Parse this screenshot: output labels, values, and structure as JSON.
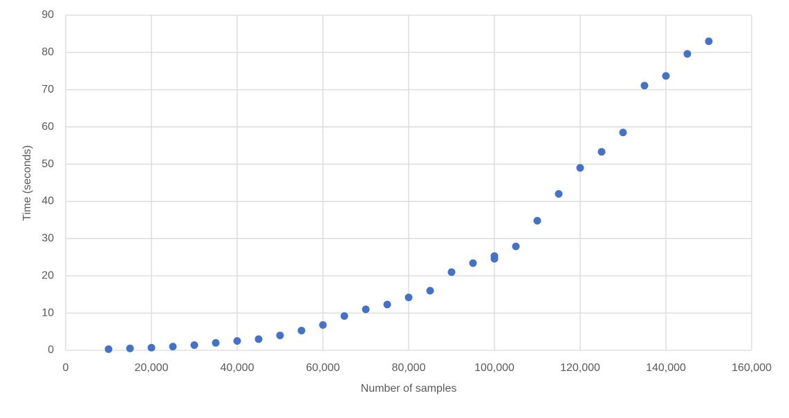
{
  "chart_data": {
    "type": "scatter",
    "x_label": "Number of samples",
    "y_label": "Time (seconds)",
    "color": "#4472c4",
    "grid": true,
    "xlim": [
      0,
      160000
    ],
    "xticks": [
      0,
      {
        "value": 20000,
        "label": "20,000"
      },
      {
        "value": 40000,
        "label": "40,000"
      },
      {
        "value": 60000,
        "label": "60,000"
      },
      {
        "value": 80000,
        "label": "80,000"
      },
      {
        "value": 100000,
        "label": "100,000"
      },
      {
        "value": 120000,
        "label": "120,000"
      },
      {
        "value": 140000,
        "label": "140,000"
      },
      {
        "value": 160000,
        "label": "160,000"
      }
    ],
    "ylim": [
      0,
      90
    ],
    "yticks": [
      0,
      10,
      20,
      30,
      40,
      50,
      60,
      70,
      80,
      90
    ],
    "x": [
      10000,
      15000,
      20000,
      25000,
      30000,
      35000,
      40000,
      45000,
      50000,
      55000,
      60000,
      65000,
      70000,
      75000,
      80000,
      85000,
      90000,
      95000,
      100000,
      100000,
      105000,
      110000,
      115000,
      120000,
      125000,
      130000,
      135000,
      140000,
      145000,
      150000
    ],
    "values": [
      0.3,
      0.5,
      0.7,
      1.0,
      1.4,
      2.0,
      2.5,
      3.0,
      4.0,
      5.3,
      6.8,
      9.2,
      11.0,
      12.3,
      14.2,
      16.0,
      21.0,
      23.4,
      25.3,
      24.6,
      27.9,
      34.8,
      42.0,
      49.0,
      53.3,
      58.5,
      71.1,
      73.7,
      79.6,
      83.0
    ]
  }
}
